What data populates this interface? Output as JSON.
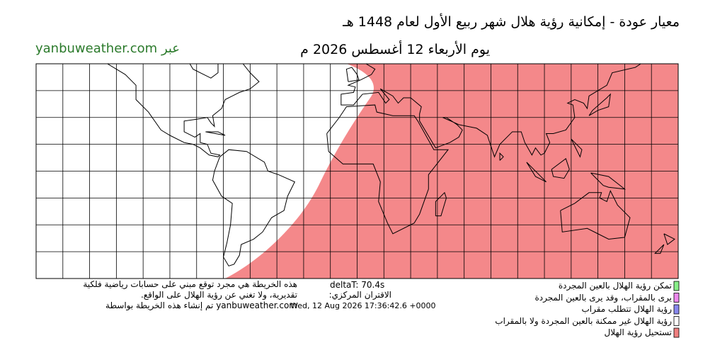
{
  "header": {
    "title": "معيار عودة - إمكانية رؤية هلال شهر ربيع الأول لعام 1448 هـ",
    "date": "يوم الأربعاء 12 أغسطس 2026 م",
    "source": "yanbuweather.com عبر"
  },
  "footer": {
    "note": [
      "هذه الخريطة هي مجرد توقع مبني على حسابات رياضية فلكية",
      "تقديرية، ولا تغني عن رؤية الهلال على الواقع.",
      "yanbuweather.com تم إنشاء هذه الخريطة بواسطة"
    ],
    "deltaT": "deltaT: 70.4s",
    "conjunction_label": "الاقتران المركزي:",
    "conjunction_time": "Wed, 12 Aug 2026 17:36:42.6 +0000"
  },
  "legend": [
    {
      "label": "تمكن رؤية الهلال بالعين المجردة",
      "color": "#88ee88"
    },
    {
      "label": "يرى بالمقراب، وقد يرى بالعين المجردة",
      "color": "#ee88ee"
    },
    {
      "label": "رؤية الهلال تتطلب مقراب",
      "color": "#8888ee"
    },
    {
      "label": "رؤية الهلال غير ممكنة بالعين المجردة ولا بالمقراب",
      "color": "#ffffff"
    },
    {
      "label": "تستحيل رؤية الهلال",
      "color": "#f08080"
    }
  ]
}
